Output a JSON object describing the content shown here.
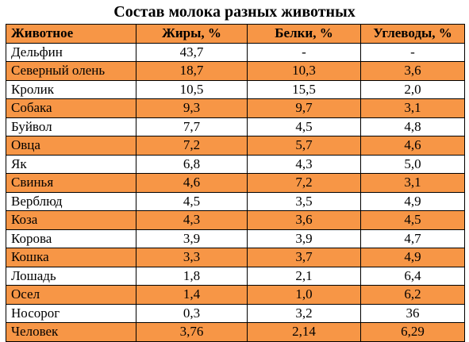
{
  "title": "Состав молока разных животных",
  "colors": {
    "accent_orange": "#f79646",
    "row_white": "#ffffff",
    "border": "#000000"
  },
  "table": {
    "headers": [
      "Животное",
      "Жиры, %",
      "Белки, %",
      "Углеводы, %"
    ],
    "rows": [
      [
        "Дельфин",
        "43,7",
        "-",
        "-"
      ],
      [
        "Северный олень",
        "18,7",
        "10,3",
        "3,6"
      ],
      [
        "Кролик",
        "10,5",
        "15,5",
        "2,0"
      ],
      [
        "Собака",
        "9,3",
        "9,7",
        "3,1"
      ],
      [
        "Буйвол",
        "7,7",
        "4,5",
        "4,8"
      ],
      [
        "Овца",
        "7,2",
        "5,7",
        "4,6"
      ],
      [
        "Як",
        "6,8",
        "4,3",
        "5,0"
      ],
      [
        "Свинья",
        "4,6",
        "7,2",
        "3,1"
      ],
      [
        "Верблюд",
        "4,5",
        "3,5",
        "4,9"
      ],
      [
        "Коза",
        "4,3",
        "3,6",
        "4,5"
      ],
      [
        "Корова",
        "3,9",
        "3,9",
        "4,7"
      ],
      [
        "Кошка",
        "3,3",
        "3,7",
        "4,9"
      ],
      [
        "Лошадь",
        "1,8",
        "2,1",
        "6,4"
      ],
      [
        "Осел",
        "1,4",
        "1,0",
        "6,2"
      ],
      [
        "Носорог",
        "0,3",
        "3,2",
        "36"
      ],
      [
        "Человек",
        "3,76",
        "2,14",
        "6,29"
      ]
    ]
  }
}
